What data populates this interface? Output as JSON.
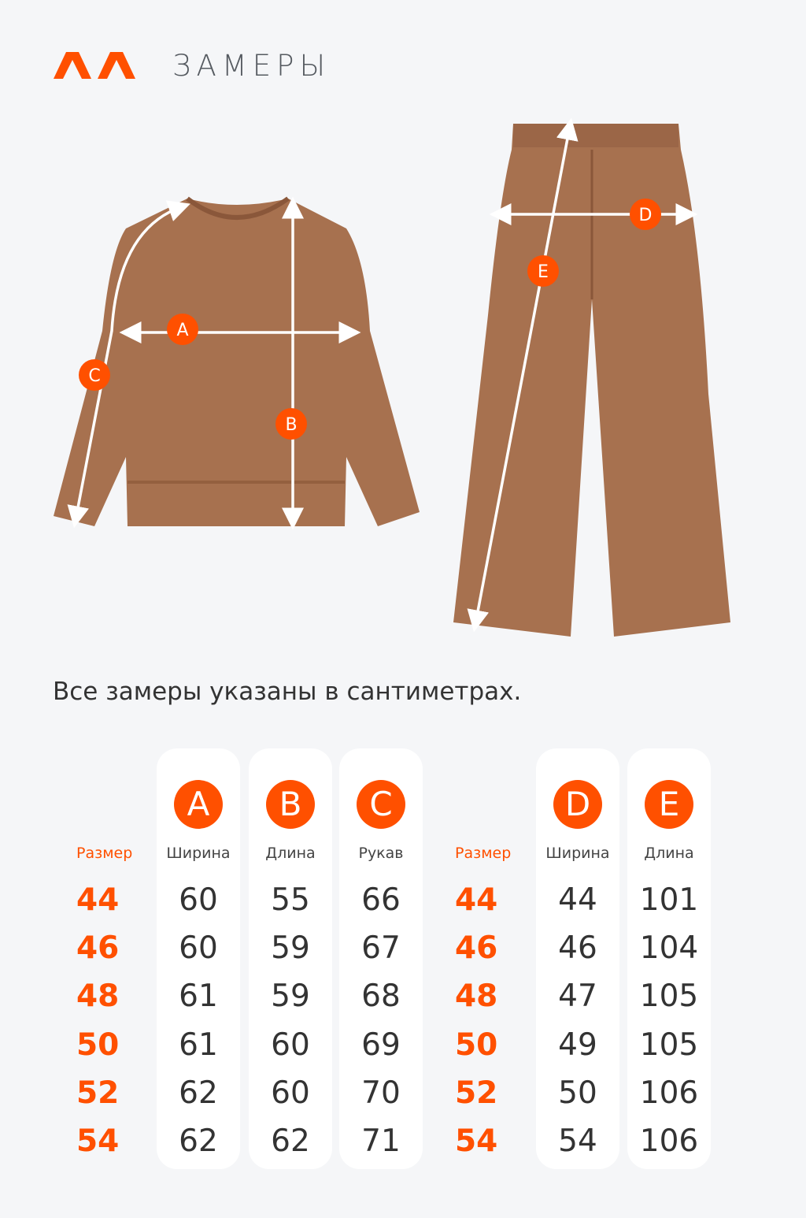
{
  "header": {
    "title": "ЗАМЕРЫ",
    "logo": "brand-logo"
  },
  "diagram": {
    "labels": [
      "A",
      "B",
      "C",
      "D",
      "E"
    ]
  },
  "note": "Все замеры указаны в сантиметрах.",
  "colors": {
    "accent": "#ff5000",
    "fabric": "#a7714f",
    "text": "#333333",
    "card": "#ffffff",
    "background": "#f5f6f8"
  },
  "top_table": {
    "size_header": "Размер",
    "columns": [
      {
        "letter": "A",
        "label": "Ширина"
      },
      {
        "letter": "B",
        "label": "Длина"
      },
      {
        "letter": "C",
        "label": "Рукав"
      }
    ],
    "rows": [
      {
        "size": "44",
        "values": [
          "60",
          "55",
          "66"
        ]
      },
      {
        "size": "46",
        "values": [
          "60",
          "59",
          "67"
        ]
      },
      {
        "size": "48",
        "values": [
          "61",
          "59",
          "68"
        ]
      },
      {
        "size": "50",
        "values": [
          "61",
          "60",
          "69"
        ]
      },
      {
        "size": "52",
        "values": [
          "62",
          "60",
          "70"
        ]
      },
      {
        "size": "54",
        "values": [
          "62",
          "62",
          "71"
        ]
      }
    ]
  },
  "bottom_table": {
    "size_header": "Размер",
    "columns": [
      {
        "letter": "D",
        "label": "Ширина"
      },
      {
        "letter": "E",
        "label": "Длина"
      }
    ],
    "rows": [
      {
        "size": "44",
        "values": [
          "44",
          "101"
        ]
      },
      {
        "size": "46",
        "values": [
          "46",
          "104"
        ]
      },
      {
        "size": "48",
        "values": [
          "47",
          "105"
        ]
      },
      {
        "size": "50",
        "values": [
          "49",
          "105"
        ]
      },
      {
        "size": "52",
        "values": [
          "50",
          "106"
        ]
      },
      {
        "size": "54",
        "values": [
          "54",
          "106"
        ]
      }
    ]
  }
}
